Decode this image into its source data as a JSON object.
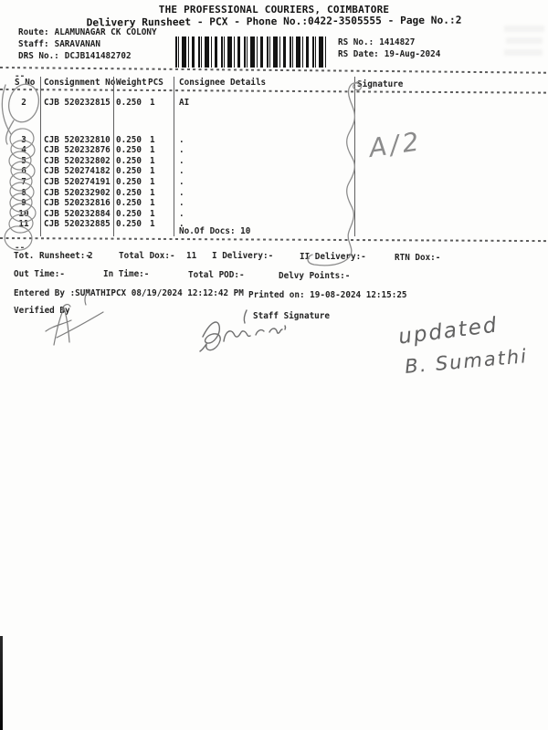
{
  "header": {
    "company": "THE PROFESSIONAL COURIERS, COIMBATORE",
    "subtitle": "Delivery Runsheet - PCX - Phone No.:0422-3505555 - Page No.:2",
    "route_label": "Route:",
    "route_value": "ALAMUNAGAR CK COLONY",
    "staff_label": "Staff:",
    "staff_value": "SARAVANAN",
    "drs_label": "DRS No.:",
    "drs_value": "DCJB141482702",
    "rs_no_label": "RS No.:",
    "rs_no_value": "1414827",
    "rs_date_label": "RS Date:",
    "rs_date_value": "19-Aug-2024"
  },
  "artifacts": {
    "dash": "--"
  },
  "table": {
    "headers": [
      "S No",
      "Consignment No",
      "Weight",
      "PCS",
      "Consignee Details",
      "Signature"
    ],
    "rows": [
      {
        "sno": "2",
        "consignment": "CJB 520232815",
        "weight": "0.250",
        "pcs": "1",
        "consignee": "AI"
      },
      {
        "sno": "3",
        "consignment": "CJB 520232810",
        "weight": "0.250",
        "pcs": "1",
        "consignee": "."
      },
      {
        "sno": "4",
        "consignment": "CJB 520232876",
        "weight": "0.250",
        "pcs": "1",
        "consignee": "."
      },
      {
        "sno": "5",
        "consignment": "CJB 520232802",
        "weight": "0.250",
        "pcs": "1",
        "consignee": "."
      },
      {
        "sno": "6",
        "consignment": "CJB 520274182",
        "weight": "0.250",
        "pcs": "1",
        "consignee": "."
      },
      {
        "sno": "7",
        "consignment": "CJB 520274191",
        "weight": "0.250",
        "pcs": "1",
        "consignee": "."
      },
      {
        "sno": "8",
        "consignment": "CJB 520232902",
        "weight": "0.250",
        "pcs": "1",
        "consignee": "."
      },
      {
        "sno": "9",
        "consignment": "CJB 520232816",
        "weight": "0.250",
        "pcs": "1",
        "consignee": "."
      },
      {
        "sno": "10",
        "consignment": "CJB 520232884",
        "weight": "0.250",
        "pcs": "1",
        "consignee": "."
      },
      {
        "sno": "11",
        "consignment": "CJB 520232885",
        "weight": "0.250",
        "pcs": "1",
        "consignee": "."
      }
    ],
    "docs_note": "No.Of Docs: 10"
  },
  "totals": {
    "runsheet_label": "Tot. Runsheet:-",
    "runsheet_value": "2",
    "total_dox_label": "Total Dox:-",
    "total_dox_value": "11",
    "i_delivery_label": "I Delivery:-",
    "ii_delivery_label": "II Delivery:-",
    "rtn_dox_label": "RTN Dox:-",
    "out_time_label": "Out Time:-",
    "in_time_label": "In Time:-",
    "total_pod_label": "Total POD:-",
    "delvy_points_label": "Delvy Points:-",
    "entered_by": "Entered By :SUMATHIPCX 08/19/2024 12:12:42 PM",
    "printed_on": "Printed on: 19-08-2024 12:15:25",
    "verified_by_label": "Verified By",
    "staff_signature_label": "Staff Signature"
  },
  "handwriting": {
    "route_mark": "A/2",
    "note_line1": "updated",
    "note_line2": "B. Sumathi"
  },
  "colors": {
    "paper": "#fdfdfc",
    "ink": "#1f1f1f",
    "pencil": "#8d8d8d",
    "pen": "#616161"
  }
}
